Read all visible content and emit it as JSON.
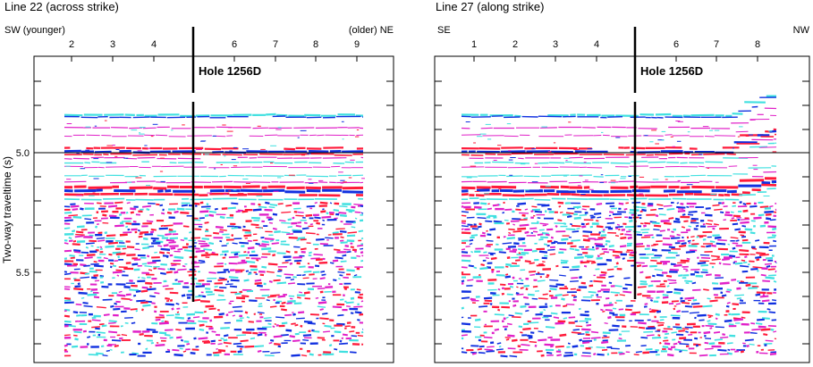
{
  "y_axis": {
    "label": "Two-way traveltime (s)",
    "tick_labels": [
      "5.0",
      "5.5"
    ]
  },
  "panels": [
    {
      "title": "Line 22 (across strike)",
      "left_label": "SW (younger)",
      "right_label": "(older) NE",
      "x_tick_labels": [
        "2",
        "3",
        "4",
        "6",
        "7",
        "8",
        "9"
      ],
      "hole_label": "Hole 1256D"
    },
    {
      "title": "Line 27 (along strike)",
      "left_label": "SE",
      "right_label": "NW",
      "x_tick_labels": [
        "1",
        "2",
        "3",
        "4",
        "6",
        "7",
        "8"
      ],
      "hole_label": "Hole 1256D"
    }
  ],
  "colors": {
    "frame": "#000000",
    "seismic_red": "#ff1a3a",
    "seismic_blue": "#1030e0",
    "seismic_cyan": "#40e0e0",
    "seismic_magenta": "#e020c8"
  }
}
